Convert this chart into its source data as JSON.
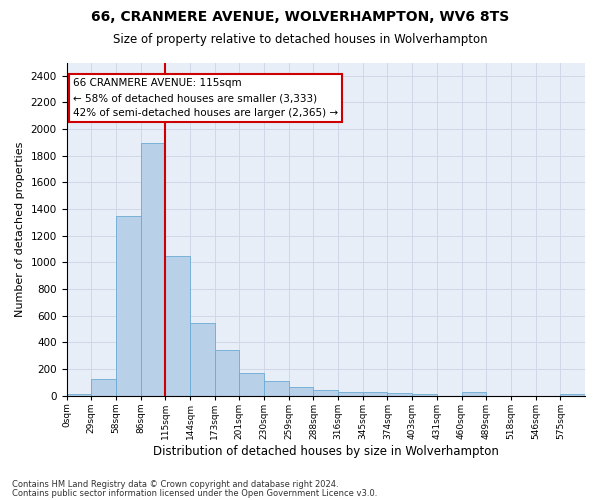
{
  "title": "66, CRANMERE AVENUE, WOLVERHAMPTON, WV6 8TS",
  "subtitle": "Size of property relative to detached houses in Wolverhampton",
  "xlabel": "Distribution of detached houses by size in Wolverhampton",
  "ylabel": "Number of detached properties",
  "bin_labels": [
    "0sqm",
    "29sqm",
    "58sqm",
    "86sqm",
    "115sqm",
    "144sqm",
    "173sqm",
    "201sqm",
    "230sqm",
    "259sqm",
    "288sqm",
    "316sqm",
    "345sqm",
    "374sqm",
    "403sqm",
    "431sqm",
    "460sqm",
    "489sqm",
    "518sqm",
    "546sqm",
    "575sqm"
  ],
  "bar_heights": [
    15,
    125,
    1345,
    1895,
    1045,
    545,
    340,
    170,
    110,
    65,
    40,
    30,
    25,
    18,
    12,
    0,
    25,
    0,
    0,
    0,
    15
  ],
  "bar_color": "#b8d0e8",
  "bar_edge_color": "#6aaad4",
  "vline_x_index": 4,
  "vline_color": "#cc0000",
  "annotation_text": "66 CRANMERE AVENUE: 115sqm\n← 58% of detached houses are smaller (3,333)\n42% of semi-detached houses are larger (2,365) →",
  "annotation_box_edgecolor": "#cc0000",
  "grid_color": "#d0d8e8",
  "background_color": "#e8eef8",
  "footer_line1": "Contains HM Land Registry data © Crown copyright and database right 2024.",
  "footer_line2": "Contains public sector information licensed under the Open Government Licence v3.0.",
  "ylim": [
    0,
    2500
  ],
  "yticks": [
    0,
    200,
    400,
    600,
    800,
    1000,
    1200,
    1400,
    1600,
    1800,
    2000,
    2200,
    2400
  ],
  "title_fontsize": 10,
  "subtitle_fontsize": 8.5,
  "ylabel_fontsize": 8,
  "xlabel_fontsize": 8.5,
  "tick_fontsize": 7.5,
  "xtick_fontsize": 6.5,
  "footer_fontsize": 6,
  "annot_fontsize": 7.5
}
